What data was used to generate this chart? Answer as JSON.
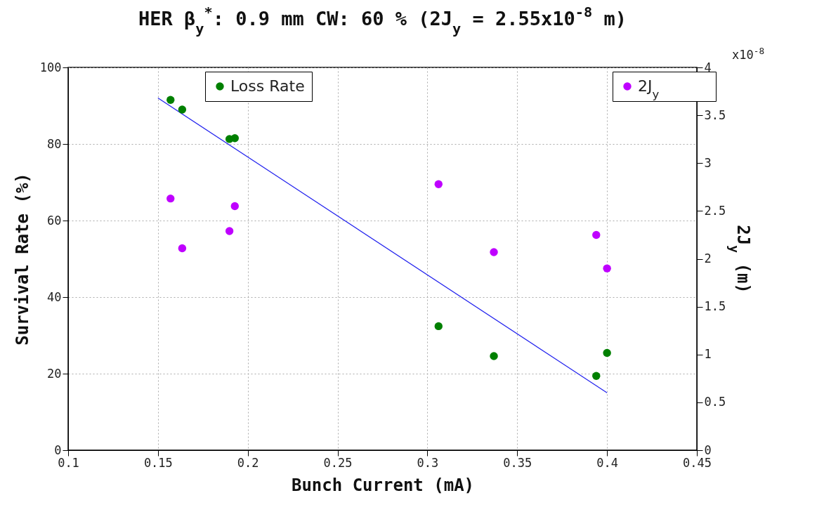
{
  "chart_data": {
    "type": "scatter",
    "title": "HER β$_{y}$$^{*}$: 0.9 mm CW: 60 % (2J$_{y}$ = 2.55x10$^{-8}$ m)",
    "xlabel": "Bunch Current (mA)",
    "ylabel": "Survival Rate (%)",
    "y2label": "2J$_{y}$ (m)",
    "annotations": [
      "x10$^{-8}$"
    ],
    "x": [
      0.157,
      0.1635,
      0.1898,
      0.1928,
      0.3062,
      0.337,
      0.394,
      0.4
    ],
    "series": [
      {
        "type": "line",
        "marker": "none",
        "color": "#2020ee",
        "x": [
          0.15,
          0.4
        ],
        "values": [
          92,
          15
        ]
      },
      {
        "name": "Loss Rate",
        "color": "#008000",
        "values": [
          91.5,
          89.0,
          81.3,
          81.5,
          32.4,
          24.6,
          19.4,
          25.4
        ]
      },
      {
        "name": "2J$_{y}$",
        "color": "#bf00ff",
        "axis": "y2",
        "values": [
          2.63,
          2.11,
          2.29,
          2.55,
          2.78,
          2.07,
          2.25,
          1.9
        ]
      }
    ],
    "xlim": [
      0.1,
      0.45
    ],
    "xticks": [
      0.1,
      0.15,
      0.2,
      0.25,
      0.3,
      0.35,
      0.4,
      0.45
    ],
    "ylim": [
      0,
      100
    ],
    "yticks": [
      0,
      20,
      40,
      60,
      80,
      100
    ],
    "y2lim": [
      0,
      4
    ],
    "y2ticks": [
      0,
      0.5,
      1,
      1.5,
      2,
      2.5,
      3,
      3.5,
      4
    ],
    "grid": true,
    "legend": "top",
    "marker": "circle"
  }
}
